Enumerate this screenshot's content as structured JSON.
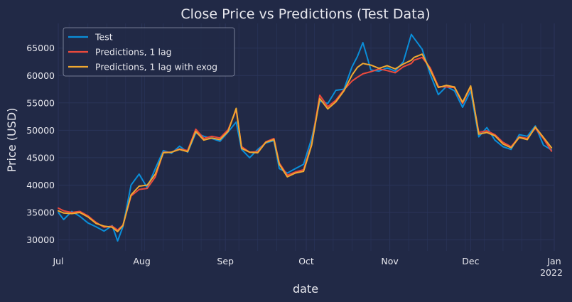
{
  "chart_data": {
    "type": "line",
    "title": "Close Price vs Predictions (Test Data)",
    "xlabel": "date",
    "ylabel": "Price (USD)",
    "x_range": [
      "2021-07-01",
      "2022-01-01"
    ],
    "ylim": [
      28000,
      69500
    ],
    "x_ticks": [
      {
        "date": "2021-07-01",
        "label": "Jul"
      },
      {
        "date": "2021-08-01",
        "label": "Aug"
      },
      {
        "date": "2021-09-01",
        "label": "Sep"
      },
      {
        "date": "2021-10-01",
        "label": "Oct"
      },
      {
        "date": "2021-11-01",
        "label": "Nov"
      },
      {
        "date": "2021-12-01",
        "label": "Dec"
      },
      {
        "date": "2022-01-01",
        "label": "Jan",
        "sublabel": "2022"
      }
    ],
    "y_ticks": [
      30000,
      35000,
      40000,
      45000,
      50000,
      55000,
      60000,
      65000
    ],
    "grid": true,
    "legend_position": "top-left",
    "colors": {
      "background": "#212946",
      "grid": "#2A3459",
      "text": "#e8e8ee",
      "test": "#0a8ed9",
      "pred1": "#ec4a3c",
      "pred2": "#f0a830"
    },
    "series": [
      {
        "name": "Test",
        "color": "#0a8ed9",
        "x": [
          "2021-07-01",
          "2021-07-03",
          "2021-07-06",
          "2021-07-09",
          "2021-07-12",
          "2021-07-15",
          "2021-07-18",
          "2021-07-21",
          "2021-07-23",
          "2021-07-25",
          "2021-07-28",
          "2021-07-31",
          "2021-08-03",
          "2021-08-06",
          "2021-08-09",
          "2021-08-12",
          "2021-08-15",
          "2021-08-18",
          "2021-08-21",
          "2021-08-24",
          "2021-08-27",
          "2021-08-30",
          "2021-09-02",
          "2021-09-05",
          "2021-09-07",
          "2021-09-10",
          "2021-09-13",
          "2021-09-16",
          "2021-09-19",
          "2021-09-21",
          "2021-09-24",
          "2021-09-27",
          "2021-09-30",
          "2021-10-03",
          "2021-10-06",
          "2021-10-09",
          "2021-10-12",
          "2021-10-15",
          "2021-10-18",
          "2021-10-20",
          "2021-10-22",
          "2021-10-25",
          "2021-10-28",
          "2021-10-31",
          "2021-11-03",
          "2021-11-06",
          "2021-11-09",
          "2021-11-10",
          "2021-11-13",
          "2021-11-16",
          "2021-11-19",
          "2021-11-22",
          "2021-11-25",
          "2021-11-28",
          "2021-12-01",
          "2021-12-04",
          "2021-12-07",
          "2021-12-10",
          "2021-12-13",
          "2021-12-16",
          "2021-12-19",
          "2021-12-22",
          "2021-12-25",
          "2021-12-28",
          "2021-12-31"
        ],
        "y": [
          35000,
          33700,
          35200,
          34300,
          33100,
          32400,
          31600,
          32600,
          29800,
          32400,
          40000,
          42000,
          39500,
          43000,
          46300,
          45800,
          47100,
          46000,
          49500,
          48900,
          48500,
          48000,
          49700,
          51500,
          46500,
          45000,
          46500,
          47700,
          48100,
          43000,
          42200,
          43000,
          43800,
          48500,
          55300,
          54900,
          57300,
          57500,
          61600,
          63500,
          66000,
          61000,
          60800,
          61400,
          60800,
          62500,
          67500,
          66800,
          64800,
          60200,
          56500,
          58000,
          57200,
          54200,
          57200,
          48800,
          50500,
          48200,
          47000,
          46500,
          49200,
          48900,
          50800,
          47300,
          46400
        ]
      },
      {
        "name": "Predictions, 1 lag",
        "color": "#ec4a3c",
        "x": [
          "2021-07-01",
          "2021-07-03",
          "2021-07-06",
          "2021-07-09",
          "2021-07-12",
          "2021-07-15",
          "2021-07-18",
          "2021-07-21",
          "2021-07-23",
          "2021-07-25",
          "2021-07-28",
          "2021-07-31",
          "2021-08-03",
          "2021-08-06",
          "2021-08-09",
          "2021-08-12",
          "2021-08-15",
          "2021-08-18",
          "2021-08-21",
          "2021-08-24",
          "2021-08-27",
          "2021-08-30",
          "2021-09-02",
          "2021-09-05",
          "2021-09-07",
          "2021-09-10",
          "2021-09-13",
          "2021-09-16",
          "2021-09-19",
          "2021-09-21",
          "2021-09-24",
          "2021-09-27",
          "2021-09-30",
          "2021-10-03",
          "2021-10-06",
          "2021-10-09",
          "2021-10-12",
          "2021-10-15",
          "2021-10-18",
          "2021-10-20",
          "2021-10-22",
          "2021-10-25",
          "2021-10-28",
          "2021-10-31",
          "2021-11-03",
          "2021-11-06",
          "2021-11-09",
          "2021-11-10",
          "2021-11-13",
          "2021-11-16",
          "2021-11-19",
          "2021-11-22",
          "2021-11-25",
          "2021-11-28",
          "2021-12-01",
          "2021-12-04",
          "2021-12-07",
          "2021-12-10",
          "2021-12-13",
          "2021-12-16",
          "2021-12-19",
          "2021-12-22",
          "2021-12-25",
          "2021-12-28",
          "2021-12-31"
        ],
        "y": [
          35800,
          35300,
          35000,
          35200,
          34400,
          33200,
          32300,
          32500,
          31800,
          32700,
          38000,
          39200,
          39400,
          41500,
          46000,
          46000,
          46600,
          46300,
          50200,
          48500,
          48900,
          48600,
          50100,
          53700,
          47000,
          46000,
          46100,
          47900,
          48500,
          44000,
          41800,
          42400,
          42800,
          47500,
          56400,
          54300,
          55500,
          57400,
          59000,
          59700,
          60300,
          60700,
          61200,
          60900,
          60500,
          61600,
          62200,
          62800,
          63300,
          61400,
          58000,
          57900,
          57800,
          54900,
          57900,
          49600,
          49900,
          49200,
          47800,
          47000,
          48800,
          48500,
          50400,
          48500,
          46200
        ]
      },
      {
        "name": "Predictions, 1 lag with exog",
        "color": "#f0a830",
        "x": [
          "2021-07-01",
          "2021-07-03",
          "2021-07-06",
          "2021-07-09",
          "2021-07-12",
          "2021-07-15",
          "2021-07-18",
          "2021-07-21",
          "2021-07-23",
          "2021-07-25",
          "2021-07-28",
          "2021-07-31",
          "2021-08-03",
          "2021-08-06",
          "2021-08-09",
          "2021-08-12",
          "2021-08-15",
          "2021-08-18",
          "2021-08-21",
          "2021-08-24",
          "2021-08-27",
          "2021-08-30",
          "2021-09-02",
          "2021-09-05",
          "2021-09-07",
          "2021-09-10",
          "2021-09-13",
          "2021-09-16",
          "2021-09-19",
          "2021-09-21",
          "2021-09-24",
          "2021-09-27",
          "2021-09-30",
          "2021-10-03",
          "2021-10-06",
          "2021-10-09",
          "2021-10-12",
          "2021-10-15",
          "2021-10-18",
          "2021-10-20",
          "2021-10-22",
          "2021-10-25",
          "2021-10-28",
          "2021-10-31",
          "2021-11-03",
          "2021-11-06",
          "2021-11-09",
          "2021-11-10",
          "2021-11-13",
          "2021-11-16",
          "2021-11-19",
          "2021-11-22",
          "2021-11-25",
          "2021-11-28",
          "2021-12-01",
          "2021-12-04",
          "2021-12-07",
          "2021-12-10",
          "2021-12-13",
          "2021-12-16",
          "2021-12-19",
          "2021-12-22",
          "2021-12-25",
          "2021-12-28",
          "2021-12-31"
        ],
        "y": [
          35300,
          34900,
          34800,
          35000,
          34200,
          33000,
          32500,
          32300,
          31500,
          32600,
          38200,
          39800,
          40000,
          42000,
          45900,
          46000,
          46500,
          46100,
          49800,
          48200,
          48600,
          48300,
          49800,
          54000,
          46700,
          46000,
          45900,
          47800,
          48300,
          43800,
          41500,
          42200,
          42500,
          47300,
          55800,
          53900,
          55200,
          57200,
          60100,
          61500,
          62200,
          61900,
          61300,
          61800,
          61200,
          62100,
          62800,
          63300,
          63900,
          61000,
          57800,
          58200,
          57900,
          55100,
          58100,
          49300,
          49600,
          49000,
          47500,
          46800,
          48700,
          48300,
          50600,
          48700,
          46800
        ]
      }
    ]
  }
}
